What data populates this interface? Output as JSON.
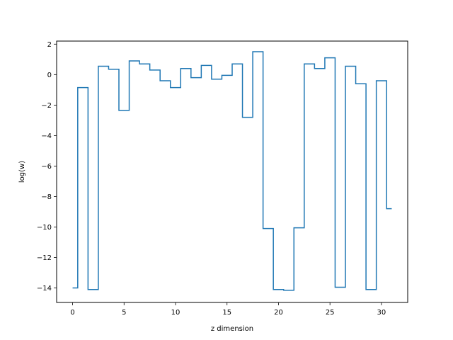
{
  "chart_data": {
    "type": "line",
    "drawstyle": "steps-mid",
    "title": "",
    "xlabel": "z dimension",
    "ylabel": "log(w)",
    "xlim": [
      -1.55,
      32.55
    ],
    "ylim": [
      -14.95,
      2.2
    ],
    "xticks": [
      0,
      5,
      10,
      15,
      20,
      25,
      30
    ],
    "yticks": [
      -14,
      -12,
      -10,
      -8,
      -6,
      -4,
      -2,
      0,
      2
    ],
    "xtick_labels": [
      "0",
      "5",
      "10",
      "15",
      "20",
      "25",
      "30"
    ],
    "ytick_labels": [
      "−14",
      "−12",
      "−10",
      "−8",
      "−6",
      "−4",
      "−2",
      "0",
      "2"
    ],
    "grid": false,
    "legend": false,
    "series": [
      {
        "color": "#1f77b4",
        "x": [
          0,
          1,
          2,
          3,
          4,
          5,
          6,
          7,
          8,
          9,
          10,
          11,
          12,
          13,
          14,
          15,
          16,
          17,
          18,
          19,
          20,
          21,
          22,
          23,
          24,
          25,
          26,
          27,
          28,
          29,
          30,
          31
        ],
        "y": [
          -14.0,
          -0.85,
          -14.1,
          0.55,
          0.35,
          -2.35,
          0.9,
          0.7,
          0.3,
          -0.4,
          -0.85,
          0.4,
          -0.2,
          0.6,
          -0.3,
          -0.05,
          0.7,
          -2.8,
          1.5,
          -10.1,
          -14.1,
          -14.15,
          -10.05,
          0.7,
          0.4,
          1.1,
          -13.95,
          0.55,
          -0.6,
          -14.1,
          -0.4,
          -8.8
        ]
      }
    ]
  }
}
